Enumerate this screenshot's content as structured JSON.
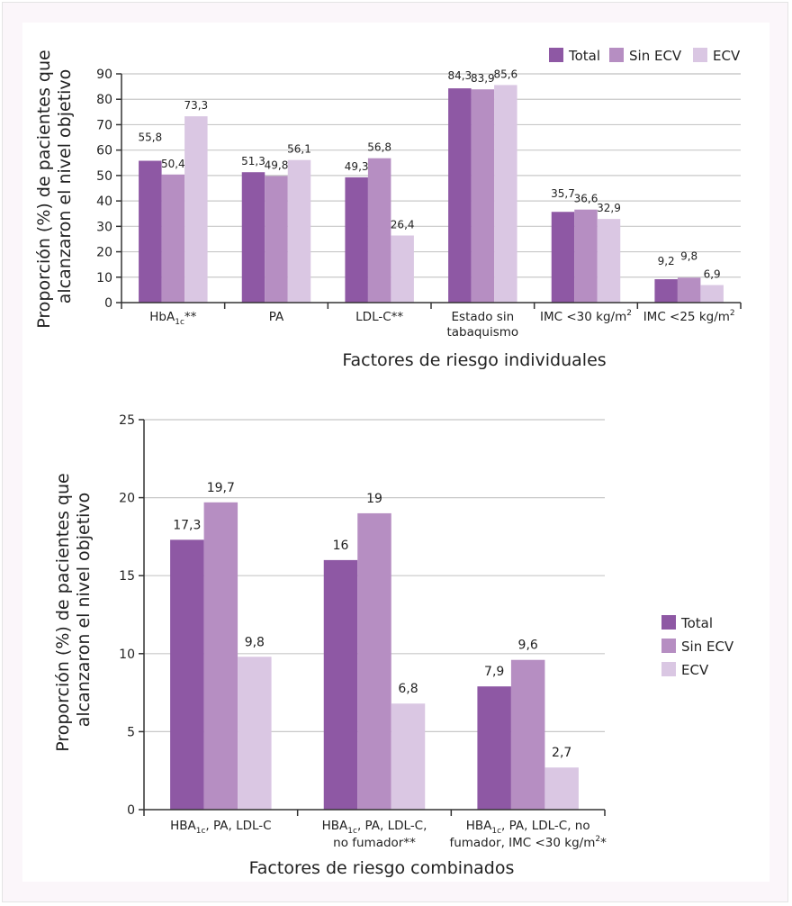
{
  "colors": {
    "total": "#8e58a4",
    "sin_ecv": "#b68ec2",
    "ecv": "#dac7e3",
    "grid": "#c8c8c8",
    "axis": "#333333"
  },
  "chart_data": [
    {
      "type": "bar",
      "title": "",
      "xlabel": "Factores de riesgo individuales",
      "ylabel_lines": [
        "Proporción (%) de pacientes que",
        "alcanzaron el nivel objetivo"
      ],
      "ylim": [
        0,
        90
      ],
      "yticks": [
        "0",
        "10",
        "20",
        "30",
        "40",
        "50",
        "60",
        "70",
        "80",
        "90"
      ],
      "ytick_values": [
        0,
        10,
        20,
        30,
        40,
        50,
        60,
        70,
        80,
        90
      ],
      "grid": true,
      "legend": {
        "position": "top-right",
        "entries": [
          "Total",
          "Sin ECV",
          "ECV"
        ]
      },
      "categories": [
        {
          "lines": [
            {
              "main": "HbA",
              "sub": "1c",
              "tail": "**"
            }
          ]
        },
        {
          "lines": [
            {
              "main": "PA"
            }
          ]
        },
        {
          "lines": [
            {
              "main": "LDL-C**"
            }
          ]
        },
        {
          "lines": [
            {
              "main": "Estado sin"
            },
            {
              "main": "tabaquismo"
            }
          ]
        },
        {
          "lines": [
            {
              "main": "IMC <30 kg/m",
              "sup": "2"
            }
          ]
        },
        {
          "lines": [
            {
              "main": "IMC <25 kg/m",
              "sup": "2"
            }
          ]
        }
      ],
      "series": [
        {
          "name": "Total",
          "key": "total",
          "values": [
            55.8,
            51.3,
            49.3,
            84.3,
            35.7,
            9.2
          ],
          "labels": [
            "55,8",
            "51,3",
            "49,3",
            "84,3",
            "35,7",
            "9,2"
          ]
        },
        {
          "name": "Sin ECV",
          "key": "sin_ecv",
          "values": [
            50.4,
            49.8,
            56.8,
            83.9,
            36.6,
            9.8
          ],
          "labels": [
            "50,4",
            "49,8",
            "56,8",
            "83,9",
            "36,6",
            "9,8"
          ]
        },
        {
          "name": "ECV",
          "key": "ecv",
          "values": [
            73.3,
            56.1,
            26.4,
            85.6,
            32.9,
            6.9
          ],
          "labels": [
            "73,3",
            "56,1",
            "26,4",
            "85,6",
            "32,9",
            "6,9"
          ]
        }
      ]
    },
    {
      "type": "bar",
      "title": "",
      "xlabel": "Factores de riesgo combinados",
      "ylabel_lines": [
        "Proporción (%) de pacientes que",
        "alcanzaron el nivel objetivo"
      ],
      "ylim": [
        0,
        25
      ],
      "yticks": [
        "0",
        "5",
        "10",
        "15",
        "20",
        "25"
      ],
      "ytick_values": [
        0,
        5,
        10,
        15,
        20,
        25
      ],
      "grid": true,
      "legend": {
        "position": "right",
        "entries": [
          "Total",
          "Sin ECV",
          "ECV"
        ]
      },
      "categories": [
        {
          "lines": [
            {
              "main": "HBA",
              "sub": "1c",
              "tail": ", PA, LDL-C"
            }
          ]
        },
        {
          "lines": [
            {
              "main": "HBA",
              "sub": "1c",
              "tail": ", PA, LDL-C,"
            },
            {
              "main": "no fumador**"
            }
          ]
        },
        {
          "lines": [
            {
              "main": "HBA",
              "sub": "1c",
              "tail": ", PA, LDL-C, no"
            },
            {
              "main": "fumador, IMC <30 kg/m",
              "sup": "2",
              "tail": "*"
            }
          ]
        }
      ],
      "series": [
        {
          "name": "Total",
          "key": "total",
          "values": [
            17.3,
            16,
            7.9
          ],
          "labels": [
            "17,3",
            "16",
            "7,9"
          ]
        },
        {
          "name": "Sin ECV",
          "key": "sin_ecv",
          "values": [
            19.7,
            19,
            9.6
          ],
          "labels": [
            "19,7",
            "19",
            "9,6"
          ]
        },
        {
          "name": "ECV",
          "key": "ecv",
          "values": [
            9.8,
            6.8,
            2.7
          ],
          "labels": [
            "9,8",
            "6,8",
            "2,7"
          ]
        }
      ]
    }
  ]
}
